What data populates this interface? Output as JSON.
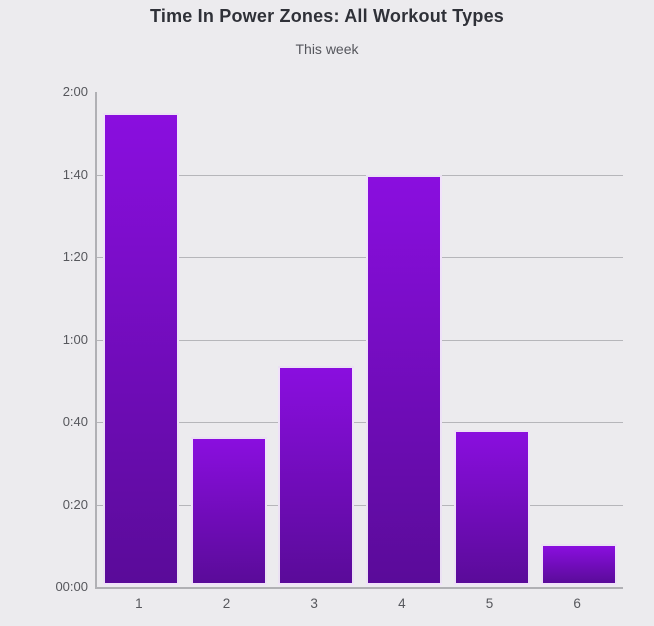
{
  "header": {
    "title": "Time In Power Zones: All Workout Types",
    "subtitle": "This week"
  },
  "colors": {
    "background": "#ecebee",
    "title": "#2f3138",
    "subtitle": "#55565c",
    "tick": "#56575c",
    "grid": "#b6b6ba",
    "axis": "#b0b0b4",
    "bar_gradient_top": "#8a0edf",
    "bar_gradient_bottom": "#5a0b99",
    "bar_border": "#ffffff"
  },
  "chart_data": {
    "type": "bar",
    "title": "Time In Power Zones: All Workout Types",
    "subtitle": "This week",
    "xlabel": "",
    "ylabel": "",
    "categories": [
      "1",
      "2",
      "3",
      "4",
      "5",
      "6"
    ],
    "values_minutes": [
      114.5,
      36,
      53,
      99.5,
      37.5,
      10
    ],
    "values_display": [
      "1:54",
      "0:36",
      "0:53",
      "1:39",
      "0:37",
      "0:10"
    ],
    "ylim_minutes": [
      0,
      120
    ],
    "y_ticks": [
      {
        "label": "2:00",
        "minutes": 120
      },
      {
        "label": "1:40",
        "minutes": 100
      },
      {
        "label": "1:20",
        "minutes": 80
      },
      {
        "label": "1:00",
        "minutes": 60
      },
      {
        "label": "0:40",
        "minutes": 40
      },
      {
        "label": "0:20",
        "minutes": 20
      },
      {
        "label": "00:00",
        "minutes": 0
      }
    ],
    "grid": "horizontal-only, no gridline at top or baseline",
    "legend": "none",
    "bar_style": "vertical purple gradient, light outline"
  }
}
